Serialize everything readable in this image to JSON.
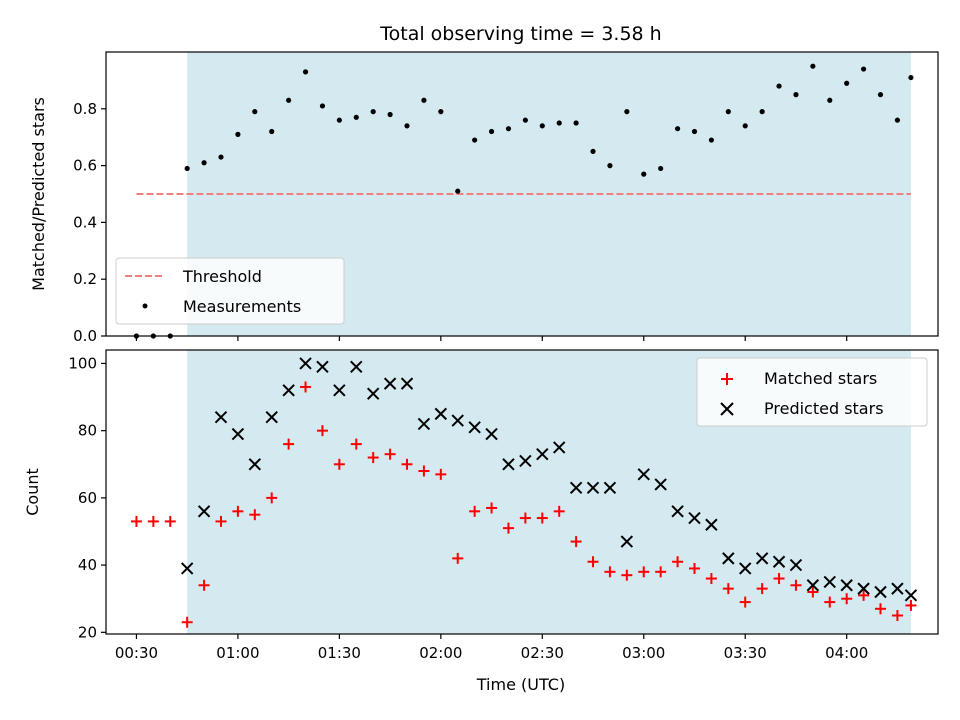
{
  "chart_data": [
    {
      "type": "scatter",
      "title": "Total observing time = 3.58 h",
      "xlabel": "",
      "ylabel": "Matched/Predicted stars",
      "ylim": [
        0,
        1
      ],
      "yticks": [
        "0.0",
        "0.2",
        "0.4",
        "0.6",
        "0.8"
      ],
      "grid": false,
      "legend_position": "lower-left",
      "shaded_span": {
        "from": "00:45",
        "to": "04:19",
        "color": "#d4eaf0"
      },
      "threshold": {
        "name": "Threshold",
        "y": 0.5,
        "from": "00:30",
        "to": "04:19",
        "color": "#f08080",
        "style": "dashed"
      },
      "series": [
        {
          "name": "Measurements",
          "marker": "dot",
          "color": "#000000",
          "points": [
            [
              "00:30",
              0.0
            ],
            [
              "00:35",
              0.0
            ],
            [
              "00:40",
              0.0
            ],
            [
              "00:45",
              0.59
            ],
            [
              "00:50",
              0.61
            ],
            [
              "00:55",
              0.63
            ],
            [
              "01:00",
              0.71
            ],
            [
              "01:05",
              0.79
            ],
            [
              "01:10",
              0.72
            ],
            [
              "01:15",
              0.83
            ],
            [
              "01:20",
              0.93
            ],
            [
              "01:25",
              0.81
            ],
            [
              "01:30",
              0.76
            ],
            [
              "01:35",
              0.77
            ],
            [
              "01:40",
              0.79
            ],
            [
              "01:45",
              0.78
            ],
            [
              "01:50",
              0.74
            ],
            [
              "01:55",
              0.83
            ],
            [
              "02:00",
              0.79
            ],
            [
              "02:05",
              0.51
            ],
            [
              "02:10",
              0.69
            ],
            [
              "02:15",
              0.72
            ],
            [
              "02:20",
              0.73
            ],
            [
              "02:25",
              0.76
            ],
            [
              "02:30",
              0.74
            ],
            [
              "02:35",
              0.75
            ],
            [
              "02:40",
              0.75
            ],
            [
              "02:45",
              0.65
            ],
            [
              "02:50",
              0.6
            ],
            [
              "02:55",
              0.79
            ],
            [
              "03:00",
              0.57
            ],
            [
              "03:05",
              0.59
            ],
            [
              "03:10",
              0.73
            ],
            [
              "03:15",
              0.72
            ],
            [
              "03:20",
              0.69
            ],
            [
              "03:25",
              0.79
            ],
            [
              "03:30",
              0.74
            ],
            [
              "03:35",
              0.79
            ],
            [
              "03:40",
              0.88
            ],
            [
              "03:45",
              0.85
            ],
            [
              "03:50",
              0.95
            ],
            [
              "03:55",
              0.83
            ],
            [
              "04:00",
              0.89
            ],
            [
              "04:05",
              0.94
            ],
            [
              "04:10",
              0.85
            ],
            [
              "04:15",
              0.76
            ],
            [
              "04:19",
              0.91
            ]
          ]
        }
      ]
    },
    {
      "type": "scatter",
      "title": "",
      "xlabel": "Time (UTC)",
      "ylabel": "Count",
      "ylim": [
        19.5,
        104
      ],
      "yticks": [
        "20",
        "40",
        "60",
        "80",
        "100"
      ],
      "xticks": [
        "00:30",
        "01:00",
        "01:30",
        "02:00",
        "02:30",
        "03:00",
        "03:30",
        "04:00"
      ],
      "xtick_labels": [
        "00:30",
        "01:00",
        "01:30",
        "02:00",
        "02:30",
        "03:00",
        "03:30",
        "04:00"
      ],
      "xlim": [
        "00:21",
        "04:27"
      ],
      "grid": false,
      "legend_position": "upper-right",
      "shaded_span": {
        "from": "00:45",
        "to": "04:19",
        "color": "#d4eaf0"
      },
      "series": [
        {
          "name": "Matched stars",
          "marker": "plus",
          "color": "#ff0000",
          "points": [
            [
              "00:30",
              53
            ],
            [
              "00:35",
              53
            ],
            [
              "00:40",
              53
            ],
            [
              "00:45",
              23
            ],
            [
              "00:50",
              34
            ],
            [
              "00:55",
              53
            ],
            [
              "01:00",
              56
            ],
            [
              "01:05",
              55
            ],
            [
              "01:10",
              60
            ],
            [
              "01:15",
              76
            ],
            [
              "01:20",
              93
            ],
            [
              "01:25",
              80
            ],
            [
              "01:30",
              70
            ],
            [
              "01:35",
              76
            ],
            [
              "01:40",
              72
            ],
            [
              "01:45",
              73
            ],
            [
              "01:50",
              70
            ],
            [
              "01:55",
              68
            ],
            [
              "02:00",
              67
            ],
            [
              "02:05",
              42
            ],
            [
              "02:10",
              56
            ],
            [
              "02:15",
              57
            ],
            [
              "02:20",
              51
            ],
            [
              "02:25",
              54
            ],
            [
              "02:30",
              54
            ],
            [
              "02:35",
              56
            ],
            [
              "02:40",
              47
            ],
            [
              "02:45",
              41
            ],
            [
              "02:50",
              38
            ],
            [
              "02:55",
              37
            ],
            [
              "03:00",
              38
            ],
            [
              "03:05",
              38
            ],
            [
              "03:10",
              41
            ],
            [
              "03:15",
              39
            ],
            [
              "03:20",
              36
            ],
            [
              "03:25",
              33
            ],
            [
              "03:30",
              29
            ],
            [
              "03:35",
              33
            ],
            [
              "03:40",
              36
            ],
            [
              "03:45",
              34
            ],
            [
              "03:50",
              32
            ],
            [
              "03:55",
              29
            ],
            [
              "04:00",
              30
            ],
            [
              "04:05",
              31
            ],
            [
              "04:10",
              27
            ],
            [
              "04:15",
              25
            ],
            [
              "04:19",
              28
            ]
          ]
        },
        {
          "name": "Predicted stars",
          "marker": "x",
          "color": "#000000",
          "points": [
            [
              "00:45",
              39
            ],
            [
              "00:50",
              56
            ],
            [
              "00:55",
              84
            ],
            [
              "01:00",
              79
            ],
            [
              "01:05",
              70
            ],
            [
              "01:10",
              84
            ],
            [
              "01:15",
              92
            ],
            [
              "01:20",
              100
            ],
            [
              "01:25",
              99
            ],
            [
              "01:30",
              92
            ],
            [
              "01:35",
              99
            ],
            [
              "01:40",
              91
            ],
            [
              "01:45",
              94
            ],
            [
              "01:50",
              94
            ],
            [
              "01:55",
              82
            ],
            [
              "02:00",
              85
            ],
            [
              "02:05",
              83
            ],
            [
              "02:10",
              81
            ],
            [
              "02:15",
              79
            ],
            [
              "02:20",
              70
            ],
            [
              "02:25",
              71
            ],
            [
              "02:30",
              73
            ],
            [
              "02:35",
              75
            ],
            [
              "02:40",
              63
            ],
            [
              "02:45",
              63
            ],
            [
              "02:50",
              63
            ],
            [
              "02:55",
              47
            ],
            [
              "03:00",
              67
            ],
            [
              "03:05",
              64
            ],
            [
              "03:10",
              56
            ],
            [
              "03:15",
              54
            ],
            [
              "03:20",
              52
            ],
            [
              "03:25",
              42
            ],
            [
              "03:30",
              39
            ],
            [
              "03:35",
              42
            ],
            [
              "03:40",
              41
            ],
            [
              "03:45",
              40
            ],
            [
              "03:50",
              34
            ],
            [
              "03:55",
              35
            ],
            [
              "04:00",
              34
            ],
            [
              "04:05",
              33
            ],
            [
              "04:10",
              32
            ],
            [
              "04:15",
              33
            ],
            [
              "04:19",
              31
            ]
          ]
        }
      ]
    }
  ]
}
